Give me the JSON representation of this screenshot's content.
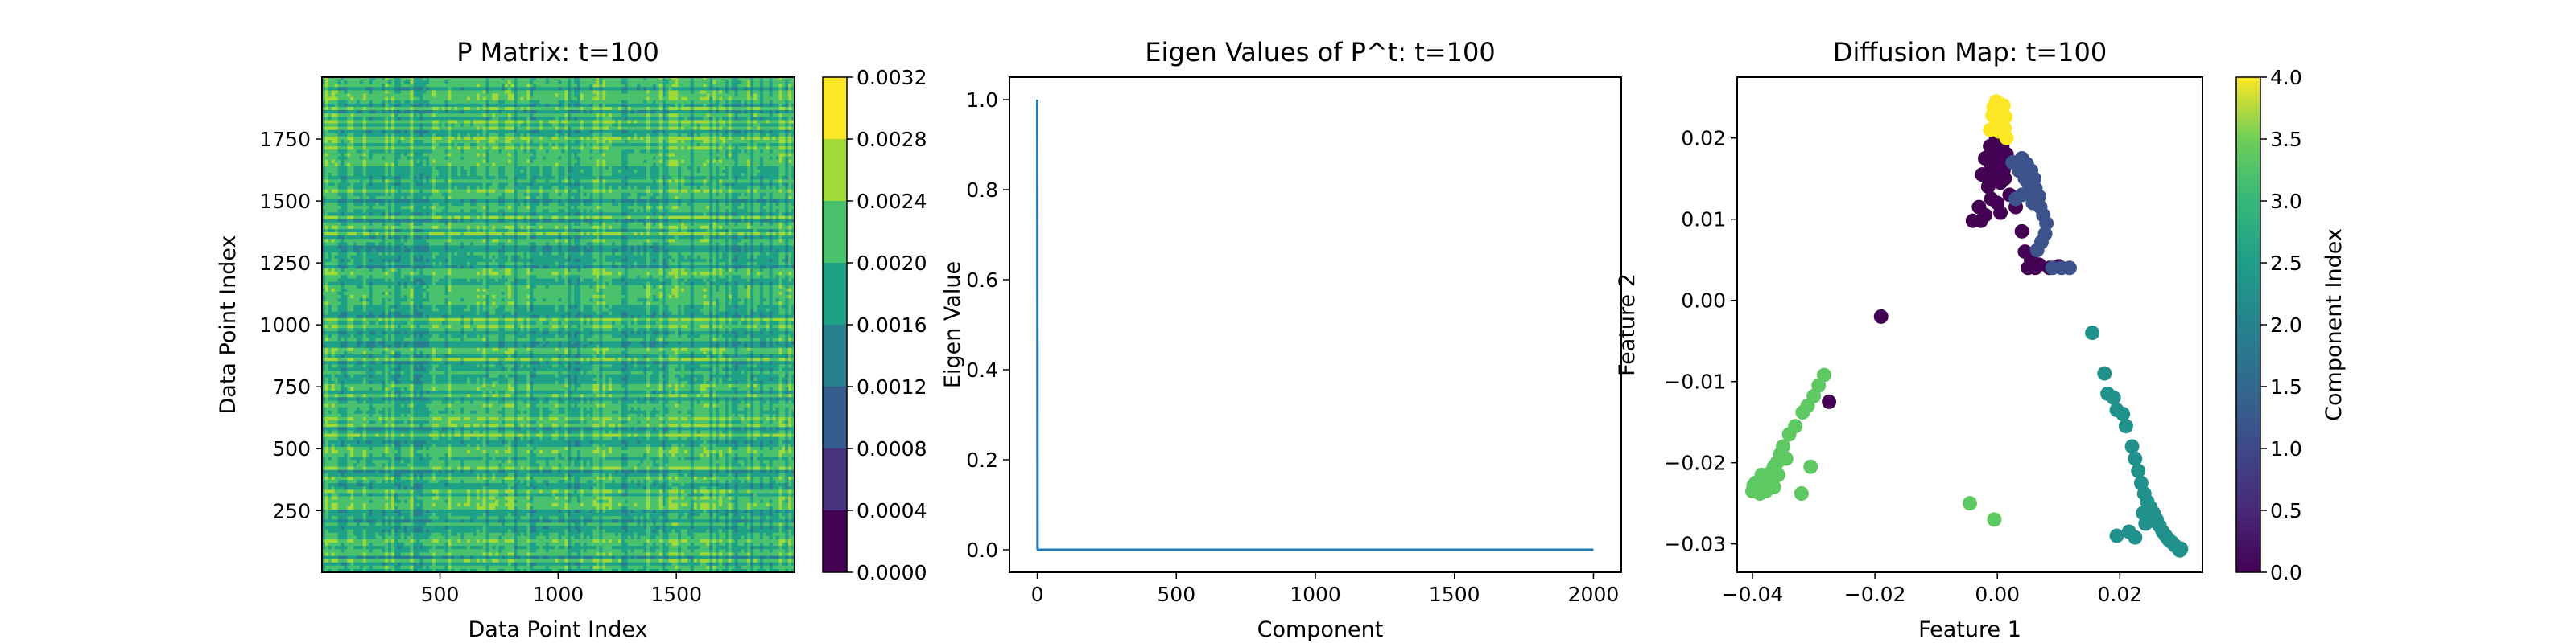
{
  "chart_data": [
    {
      "type": "heatmap",
      "title": "P Matrix: t=100",
      "xlabel": "Data Point Index",
      "ylabel": "Data Point Index",
      "xlim": [
        1,
        2000
      ],
      "ylim": [
        1,
        2000
      ],
      "x_ticks": [
        "500",
        "1000",
        "1500"
      ],
      "x_tick_values": [
        500,
        1000,
        1500
      ],
      "y_ticks": [
        "250",
        "500",
        "750",
        "1000",
        "1250",
        "1500",
        "1750"
      ],
      "y_tick_values": [
        250,
        500,
        750,
        1000,
        1250,
        1500,
        1750
      ],
      "colormap": "viridis",
      "colorbar": {
        "levels": [
          0.0,
          0.0004,
          0.0008,
          0.0012,
          0.0016,
          0.002,
          0.0024,
          0.0028,
          0.0032
        ],
        "tick_labels": [
          "0.0000",
          "0.0004",
          "0.0008",
          "0.0012",
          "0.0016",
          "0.0020",
          "0.0024",
          "0.0028",
          "0.0032"
        ],
        "colors": [
          "#440154",
          "#46327e",
          "#365c8d",
          "#277f8e",
          "#1fa187",
          "#4ac16d",
          "#a0da39",
          "#fde725"
        ]
      },
      "dominant_range": [
        0.0012,
        0.0028
      ]
    },
    {
      "type": "line",
      "title": "Eigen Values of P^t: t=100",
      "xlabel": "Component",
      "ylabel": "Eigen Value",
      "xlim": [
        -100,
        2100
      ],
      "ylim": [
        -0.05,
        1.05
      ],
      "x_ticks": [
        "0",
        "500",
        "1000",
        "1500",
        "2000"
      ],
      "x_tick_values": [
        0,
        500,
        1000,
        1500,
        2000
      ],
      "y_ticks": [
        "0.0",
        "0.2",
        "0.4",
        "0.6",
        "0.8",
        "1.0"
      ],
      "y_tick_values": [
        0.0,
        0.2,
        0.4,
        0.6,
        0.8,
        1.0
      ],
      "series": [
        {
          "color": "#1f77b4",
          "x": [
            0,
            1,
            2,
            2000
          ],
          "y": [
            1.0,
            0.002,
            0.0,
            0.0
          ]
        }
      ]
    },
    {
      "type": "scatter",
      "title": "Diffusion Map: t=100",
      "xlabel": "Feature 1",
      "ylabel": "Feature 2",
      "xlim": [
        -0.0425,
        0.0335
      ],
      "ylim": [
        -0.0335,
        0.0275
      ],
      "x_ticks": [
        "−0.04",
        "−0.02",
        "0.00",
        "0.02"
      ],
      "x_tick_values": [
        -0.04,
        -0.02,
        0.0,
        0.02
      ],
      "y_ticks": [
        "−0.03",
        "−0.02",
        "−0.01",
        "0.00",
        "0.01",
        "0.02"
      ],
      "y_tick_values": [
        -0.03,
        -0.02,
        -0.01,
        0.0,
        0.01,
        0.02
      ],
      "colorbar": {
        "label": "Component Index",
        "range": [
          0,
          4
        ],
        "tick_labels": [
          "0.0",
          "0.5",
          "1.0",
          "1.5",
          "2.0",
          "2.5",
          "3.0",
          "3.5",
          "4.0"
        ],
        "tick_values": [
          0,
          0.5,
          1,
          1.5,
          2,
          2.5,
          3,
          3.5,
          4
        ]
      },
      "class_colors": {
        "0": "#440154",
        "1": "#3b528b",
        "2": "#21918c",
        "3": "#5ec962",
        "4": "#fde725"
      },
      "points": [
        [
          -0.019,
          -0.002,
          0
        ],
        [
          -0.0027,
          0.0098,
          0
        ],
        [
          -0.003,
          0.0115,
          0
        ],
        [
          -0.002,
          0.0105,
          0
        ],
        [
          -0.004,
          0.0098,
          0
        ],
        [
          -0.001,
          0.0125,
          0
        ],
        [
          0.0,
          0.012,
          0
        ],
        [
          0.0005,
          0.0108,
          0
        ],
        [
          -0.0015,
          0.014,
          0
        ],
        [
          -0.0005,
          0.015,
          0
        ],
        [
          0.0005,
          0.0145,
          0
        ],
        [
          -0.001,
          0.0165,
          0
        ],
        [
          0.001,
          0.016,
          0
        ],
        [
          -0.002,
          0.0175,
          0
        ],
        [
          0.0,
          0.0178,
          0
        ],
        [
          0.0015,
          0.018,
          0
        ],
        [
          -0.0012,
          0.019,
          0
        ],
        [
          0.0008,
          0.019,
          0
        ],
        [
          -0.0002,
          0.02,
          0
        ],
        [
          0.0012,
          0.015,
          0
        ],
        [
          0.002,
          0.013,
          0
        ],
        [
          0.003,
          0.0115,
          0
        ],
        [
          0.004,
          0.0085,
          0
        ],
        [
          0.0045,
          0.006,
          0
        ],
        [
          0.0055,
          0.005,
          0
        ],
        [
          0.0068,
          0.0044,
          0
        ],
        [
          0.0062,
          0.004,
          0
        ],
        [
          0.005,
          0.004,
          0
        ],
        [
          0.0085,
          0.004,
          0
        ],
        [
          0.01,
          0.0042,
          0
        ],
        [
          -0.0275,
          -0.0125,
          0
        ],
        [
          -0.001,
          0.0185,
          0
        ],
        [
          0.0003,
          0.0165,
          0
        ],
        [
          -0.0025,
          0.0155,
          0
        ],
        [
          0.0018,
          0.017,
          0
        ],
        [
          0.004,
          0.0175,
          1
        ],
        [
          0.0048,
          0.0168,
          1
        ],
        [
          0.0055,
          0.016,
          1
        ],
        [
          0.006,
          0.015,
          1
        ],
        [
          0.005,
          0.0145,
          1
        ],
        [
          0.0062,
          0.0138,
          1
        ],
        [
          0.0068,
          0.0128,
          1
        ],
        [
          0.0058,
          0.012,
          1
        ],
        [
          0.007,
          0.0115,
          1
        ],
        [
          0.0075,
          0.0105,
          1
        ],
        [
          0.008,
          0.0095,
          1
        ],
        [
          0.0078,
          0.0082,
          1
        ],
        [
          0.0072,
          0.0072,
          1
        ],
        [
          0.0065,
          0.0062,
          1
        ],
        [
          0.009,
          0.004,
          1
        ],
        [
          0.0105,
          0.004,
          1
        ],
        [
          0.0118,
          0.004,
          1
        ],
        [
          0.0035,
          0.016,
          1
        ],
        [
          0.0045,
          0.015,
          1
        ],
        [
          0.003,
          0.0125,
          1
        ],
        [
          0.004,
          0.013,
          1
        ],
        [
          0.0025,
          0.017,
          1
        ],
        [
          0.0055,
          0.0135,
          1
        ],
        [
          0.0155,
          -0.004,
          2
        ],
        [
          0.0175,
          -0.009,
          2
        ],
        [
          0.018,
          -0.0115,
          2
        ],
        [
          0.019,
          -0.012,
          2
        ],
        [
          0.0195,
          -0.0135,
          2
        ],
        [
          0.0205,
          -0.014,
          2
        ],
        [
          0.021,
          -0.0155,
          2
        ],
        [
          0.022,
          -0.018,
          2
        ],
        [
          0.0225,
          -0.0195,
          2
        ],
        [
          0.023,
          -0.021,
          2
        ],
        [
          0.0235,
          -0.0225,
          2
        ],
        [
          0.024,
          -0.0238,
          2
        ],
        [
          0.0245,
          -0.0248,
          2
        ],
        [
          0.025,
          -0.0255,
          2
        ],
        [
          0.0255,
          -0.0262,
          2
        ],
        [
          0.026,
          -0.027,
          2
        ],
        [
          0.0265,
          -0.0278,
          2
        ],
        [
          0.027,
          -0.0285,
          2
        ],
        [
          0.0275,
          -0.029,
          2
        ],
        [
          0.028,
          -0.0295,
          2
        ],
        [
          0.0285,
          -0.0298,
          2
        ],
        [
          0.029,
          -0.0302,
          2
        ],
        [
          0.0295,
          -0.0305,
          2
        ],
        [
          0.0298,
          -0.0308,
          2
        ],
        [
          0.03,
          -0.0306,
          2
        ],
        [
          0.0248,
          -0.0272,
          2
        ],
        [
          0.0238,
          -0.0262,
          2
        ],
        [
          0.0215,
          -0.0285,
          2
        ],
        [
          0.0195,
          -0.029,
          2
        ],
        [
          0.0225,
          -0.0292,
          2
        ],
        [
          0.0242,
          -0.0275,
          2
        ],
        [
          -0.0045,
          -0.025,
          3
        ],
        [
          -0.0005,
          -0.027,
          3
        ],
        [
          -0.04,
          -0.0235,
          3
        ],
        [
          -0.0395,
          -0.023,
          3
        ],
        [
          -0.039,
          -0.0232,
          3
        ],
        [
          -0.0385,
          -0.0228,
          3
        ],
        [
          -0.038,
          -0.0224,
          3
        ],
        [
          -0.0375,
          -0.022,
          3
        ],
        [
          -0.037,
          -0.0212,
          3
        ],
        [
          -0.0365,
          -0.0205,
          3
        ],
        [
          -0.036,
          -0.02,
          3
        ],
        [
          -0.0355,
          -0.019,
          3
        ],
        [
          -0.035,
          -0.018,
          3
        ],
        [
          -0.034,
          -0.0165,
          3
        ],
        [
          -0.033,
          -0.0155,
          3
        ],
        [
          -0.0318,
          -0.0138,
          3
        ],
        [
          -0.031,
          -0.013,
          3
        ],
        [
          -0.03,
          -0.0118,
          3
        ],
        [
          -0.0292,
          -0.0105,
          3
        ],
        [
          -0.0283,
          -0.0092,
          3
        ],
        [
          -0.0395,
          -0.0225,
          3
        ],
        [
          -0.0388,
          -0.0238,
          3
        ],
        [
          -0.0378,
          -0.0235,
          3
        ],
        [
          -0.0372,
          -0.0225,
          3
        ],
        [
          -0.0365,
          -0.023,
          3
        ],
        [
          -0.0358,
          -0.0215,
          3
        ],
        [
          -0.0385,
          -0.0215,
          3
        ],
        [
          -0.0398,
          -0.0228,
          3
        ],
        [
          -0.0368,
          -0.0218,
          3
        ],
        [
          -0.032,
          -0.0238,
          3
        ],
        [
          -0.0305,
          -0.0205,
          3
        ],
        [
          -0.0345,
          -0.0195,
          3
        ],
        [
          -0.0003,
          0.0215,
          4
        ],
        [
          0.0,
          0.0225,
          4
        ],
        [
          0.0002,
          0.0235,
          4
        ],
        [
          -0.0002,
          0.0245,
          4
        ],
        [
          -0.0006,
          0.0238,
          4
        ],
        [
          0.0006,
          0.023,
          4
        ],
        [
          0.0008,
          0.022,
          4
        ],
        [
          0.0012,
          0.0212,
          4
        ],
        [
          0.0003,
          0.0208,
          4
        ],
        [
          -0.0008,
          0.0228,
          4
        ],
        [
          0.001,
          0.024,
          4
        ],
        [
          0.0004,
          0.0242,
          4
        ],
        [
          0.0015,
          0.02,
          4
        ],
        [
          -0.0012,
          0.021,
          4
        ],
        [
          0.0007,
          0.0215,
          4
        ],
        [
          0.0013,
          0.0226,
          4
        ]
      ]
    }
  ]
}
